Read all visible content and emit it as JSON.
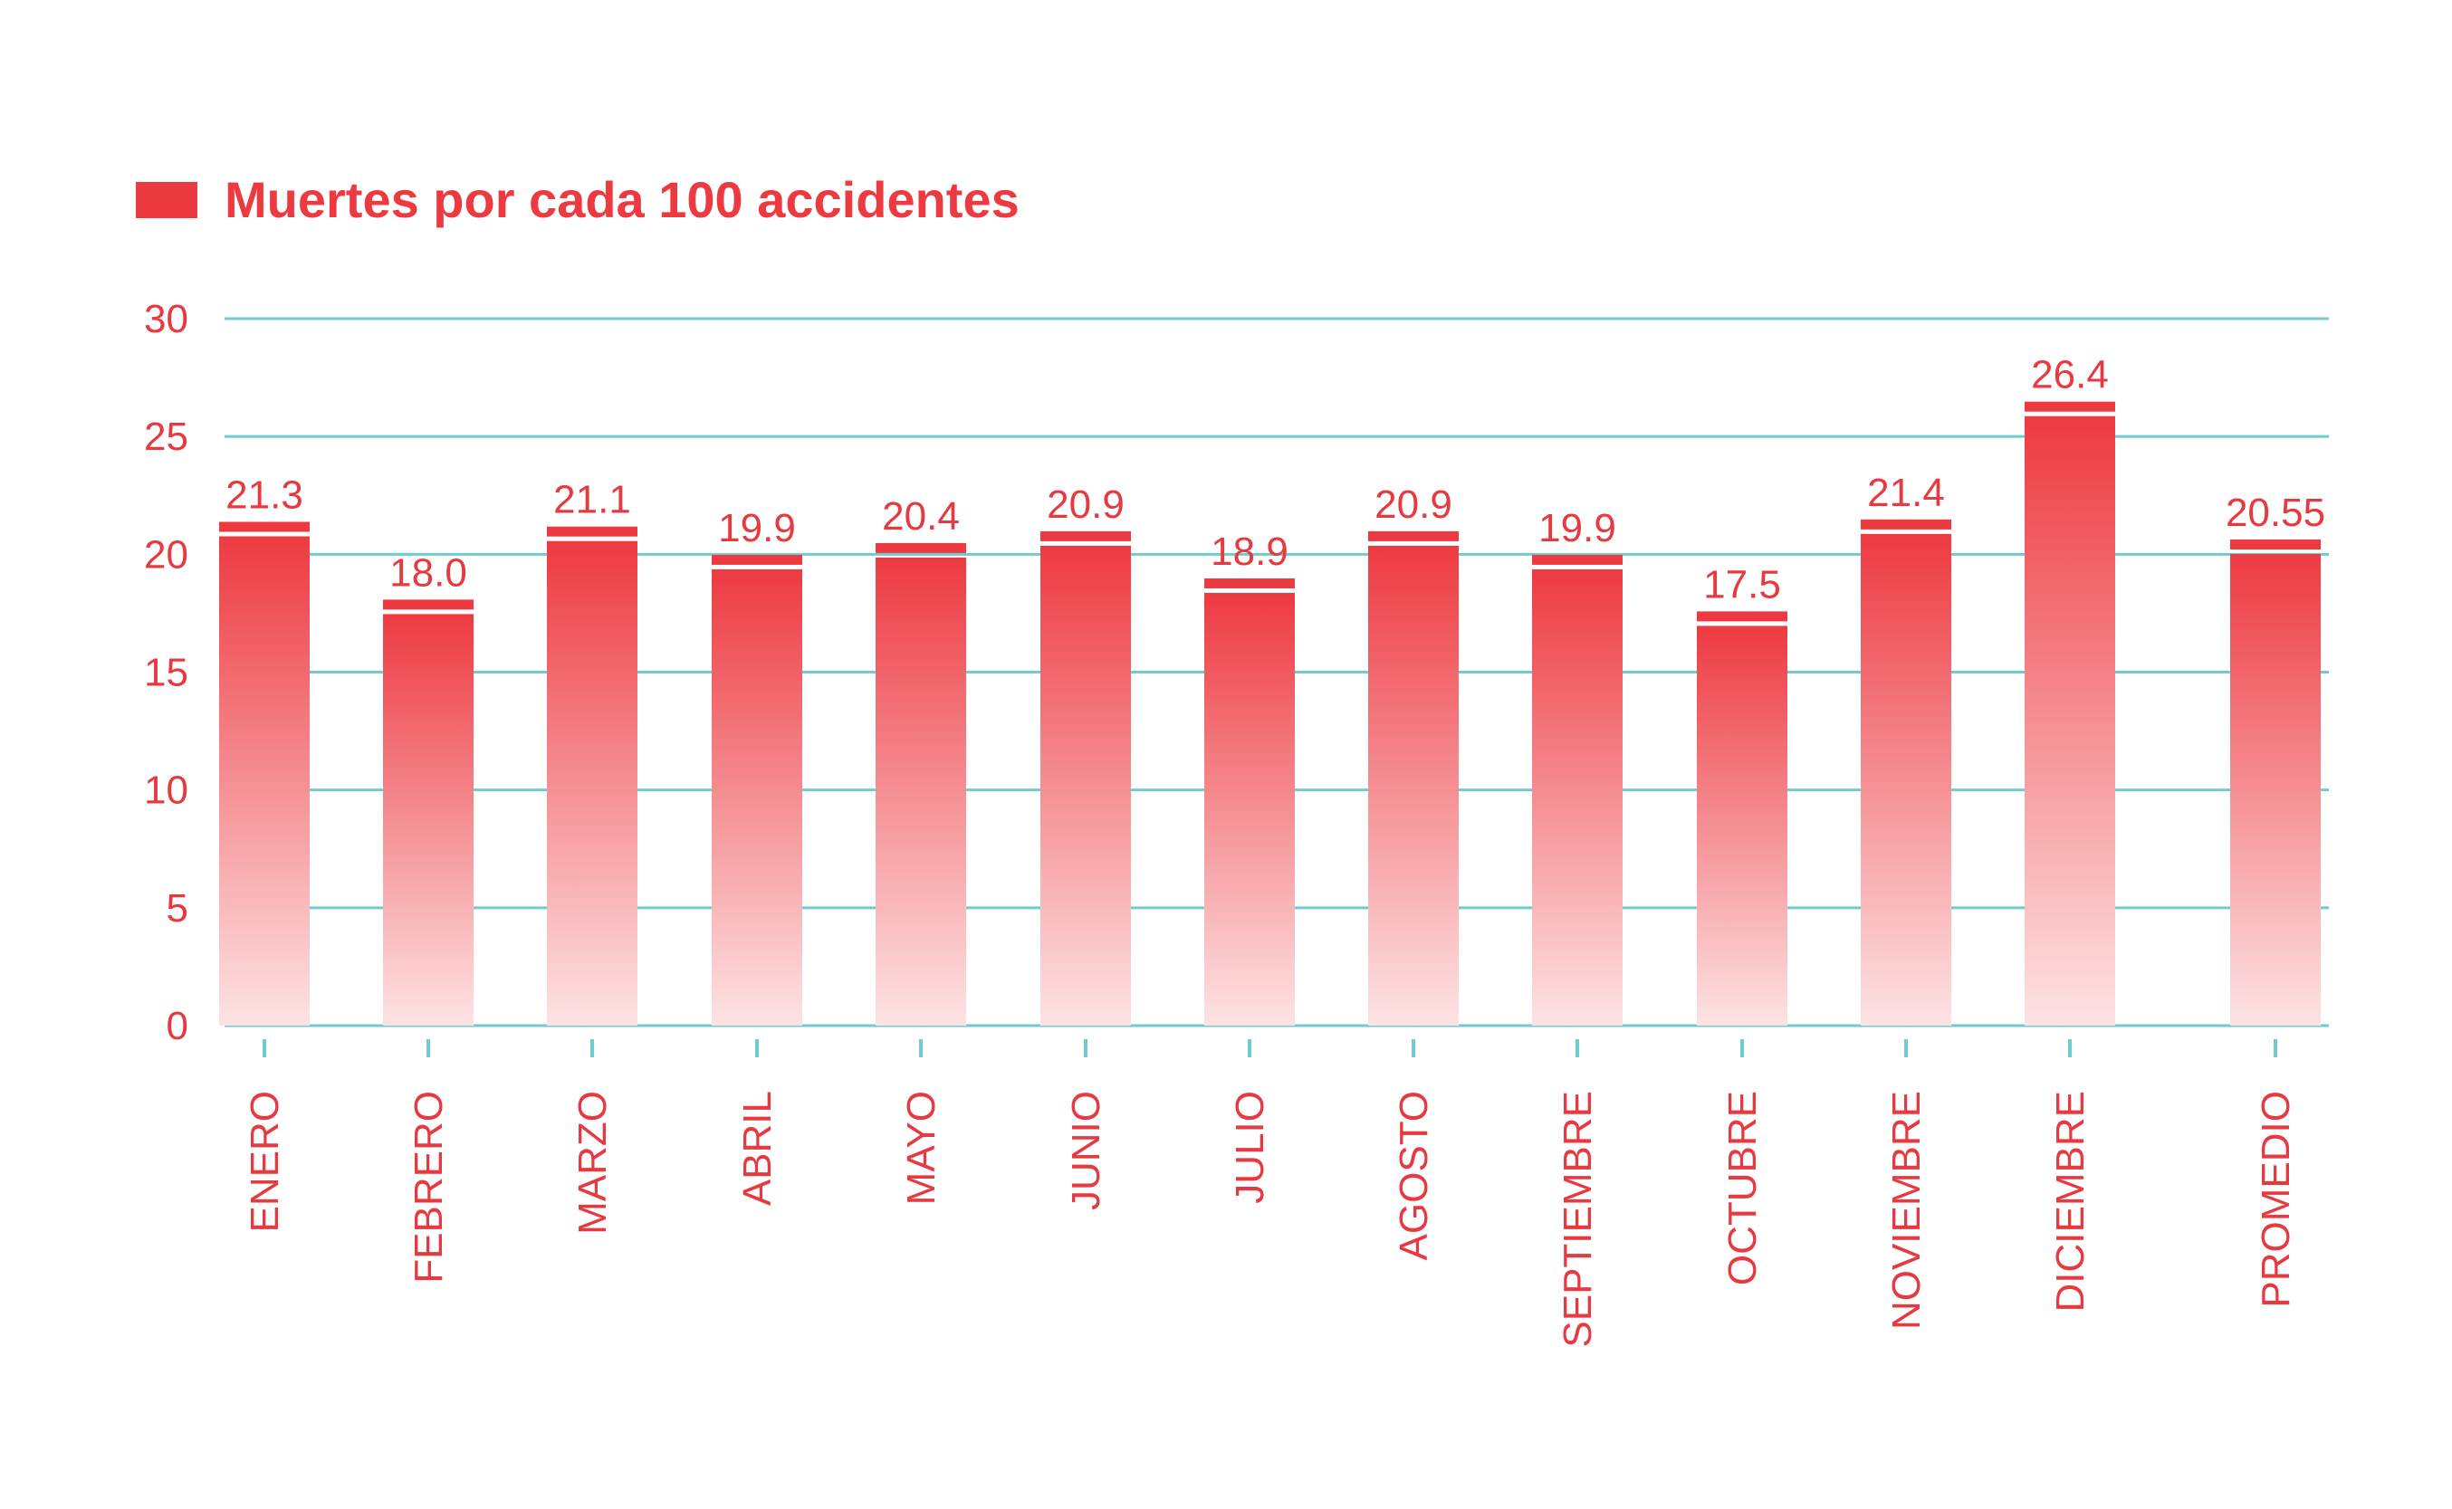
{
  "colors": {
    "bar": "#ed3a41",
    "bar_fade": "#fde3e4",
    "grid": "#6fcbcf",
    "text": "#e63940",
    "background": "#ffffff"
  },
  "chart_data": {
    "type": "bar",
    "legend": {
      "label": "Muertes por cada 100 accidentes",
      "placement": "top-left"
    },
    "categories": [
      "ENERO",
      "FEBRERO",
      "MARZO",
      "ABRIL",
      "MAYO",
      "JUNIO",
      "JULIO",
      "AGOSTO",
      "SEPTIEMBRE",
      "OCTUBRE",
      "NOVIEMBRE",
      "DICIEMBRE",
      "PROMEDIO"
    ],
    "series": [
      {
        "name": "Muertes por cada 100 accidentes",
        "values": [
          21.3,
          18.0,
          21.1,
          19.9,
          20.4,
          20.9,
          18.9,
          20.9,
          19.9,
          17.5,
          21.4,
          26.4,
          20.55
        ],
        "labels": [
          "21.3",
          "18.0",
          "21.1",
          "19.9",
          "20.4",
          "20.9",
          "18.9",
          "20.9",
          "19.9",
          "17.5",
          "21.4",
          "26.4",
          "20.55"
        ]
      }
    ],
    "ylim": [
      0,
      30
    ],
    "yticks": [
      0,
      5,
      10,
      15,
      20,
      25,
      30
    ],
    "grid": true
  }
}
